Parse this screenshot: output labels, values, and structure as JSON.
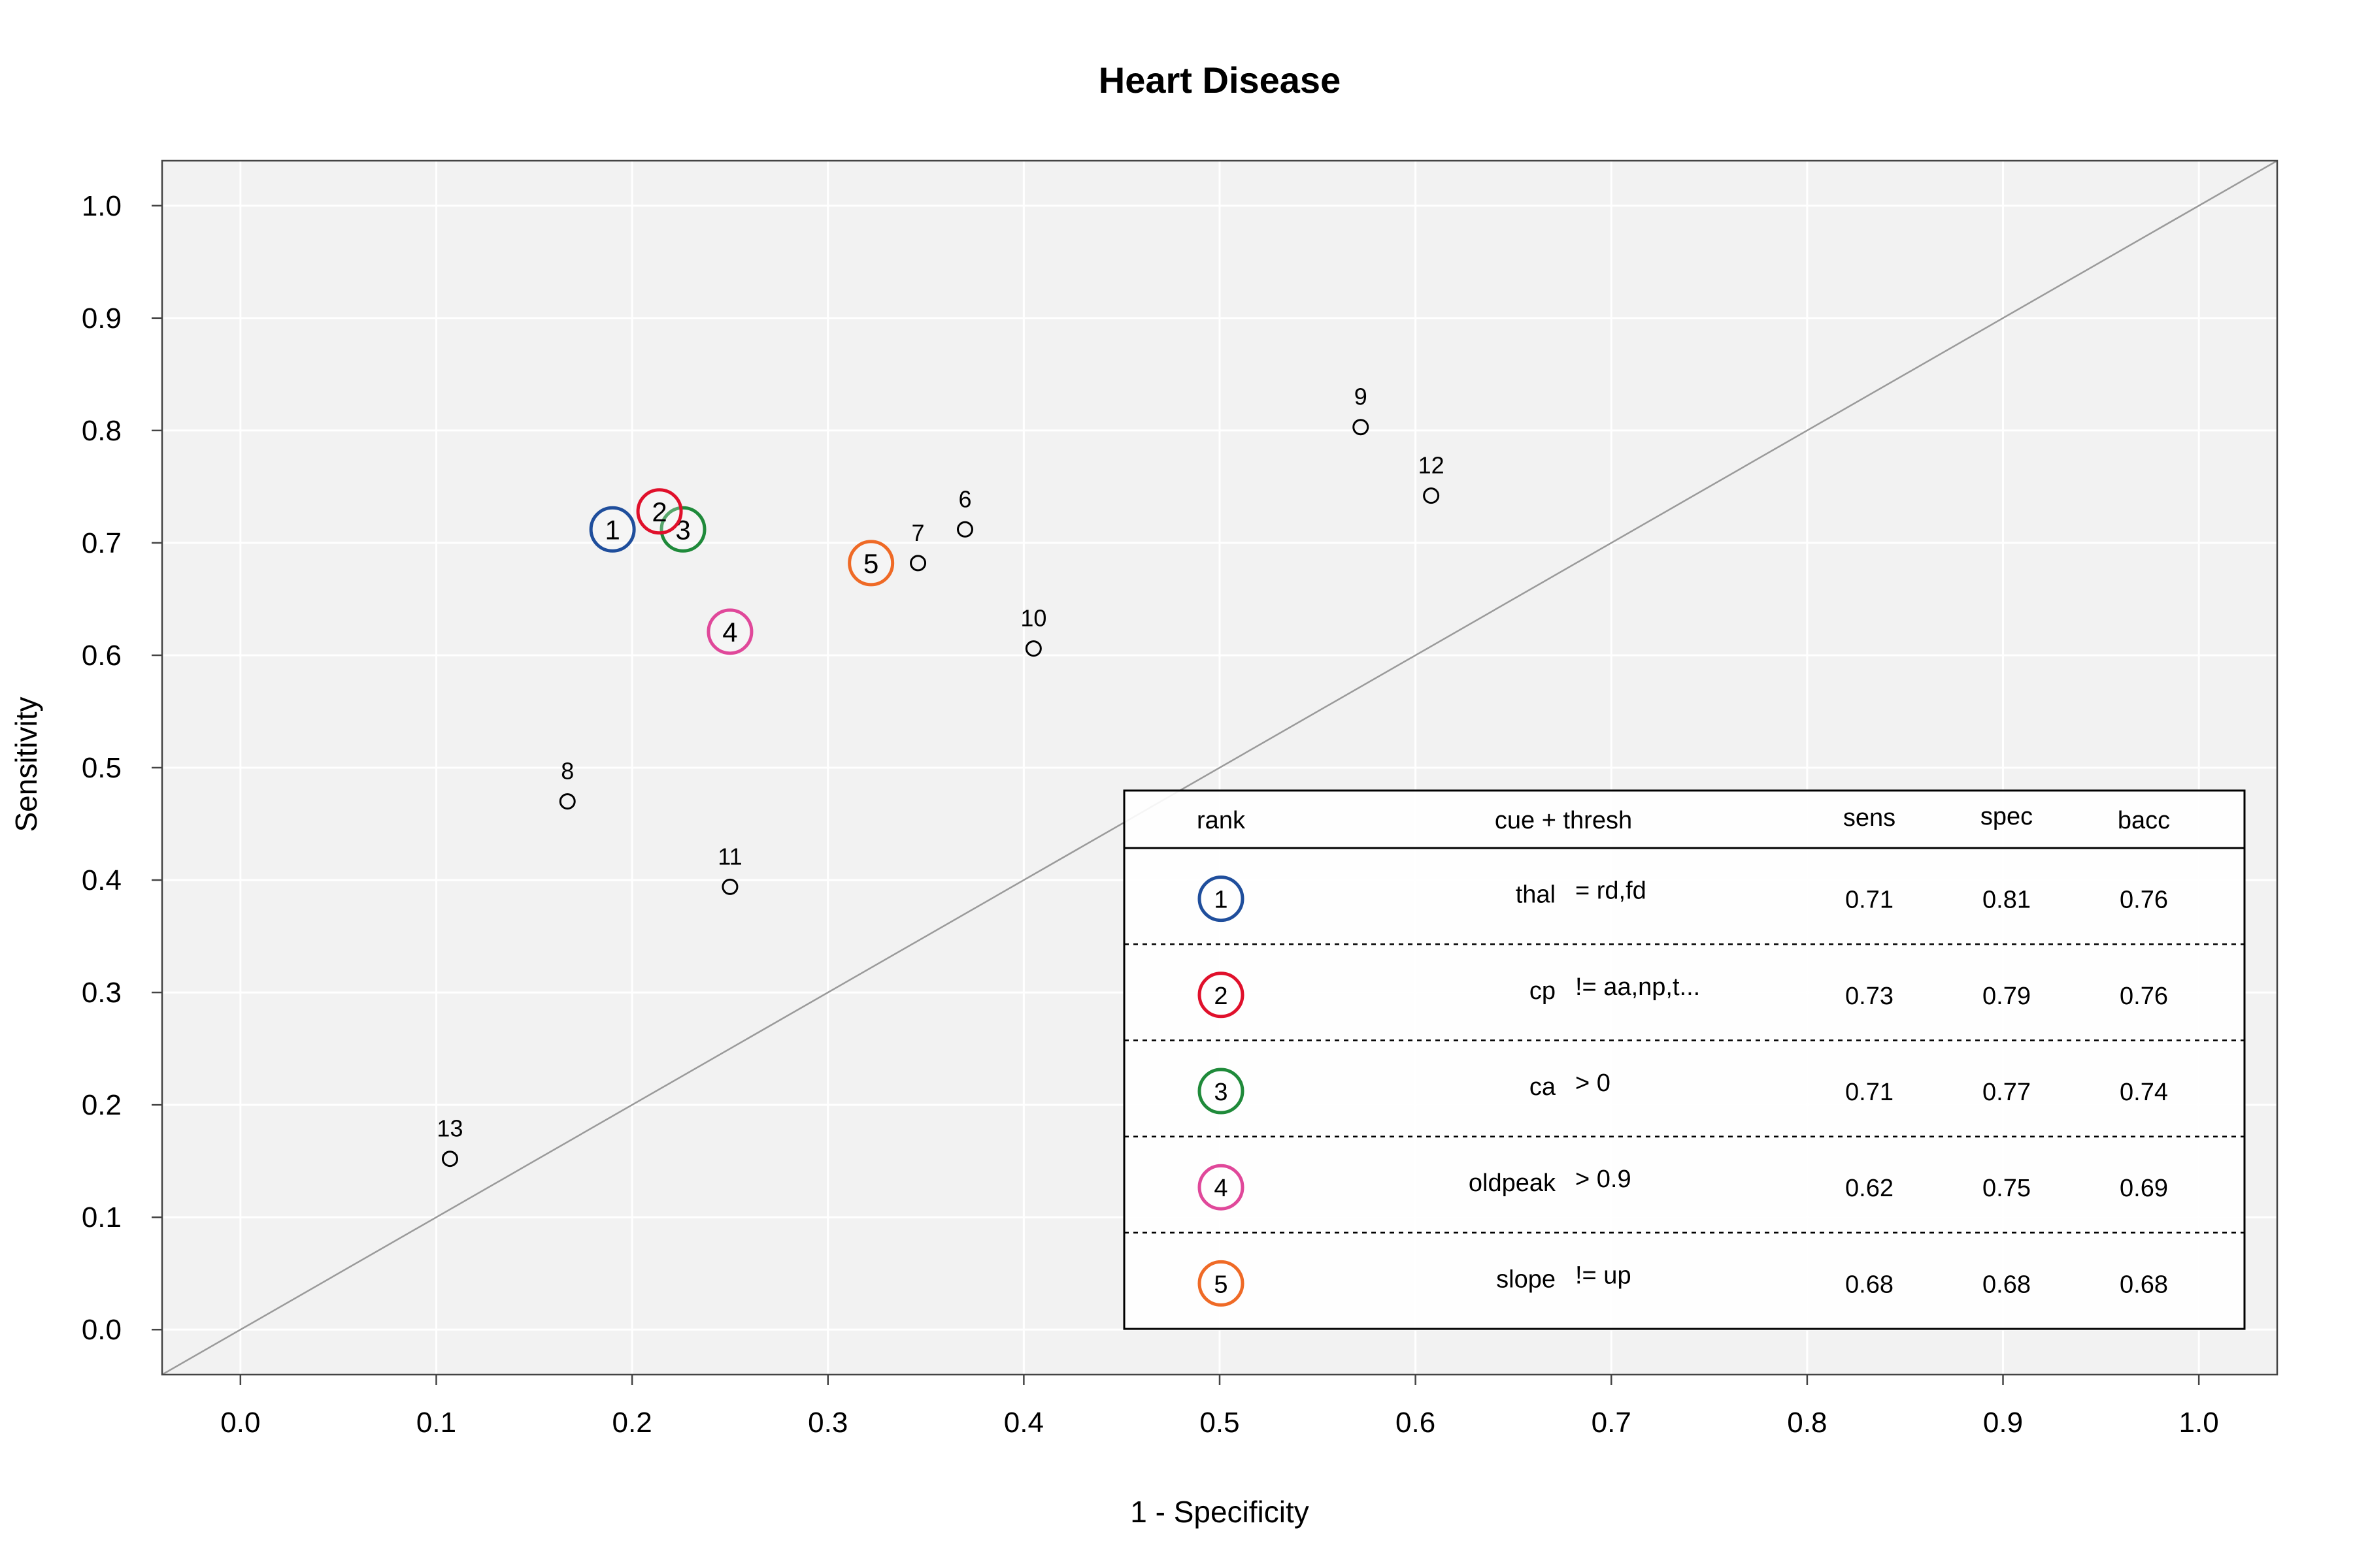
{
  "chart_data": {
    "type": "scatter",
    "title": "Heart Disease",
    "xlabel": "1 - Specificity",
    "ylabel": "Sensitivity",
    "xlim": [
      -0.04,
      1.04
    ],
    "ylim": [
      -0.04,
      1.04
    ],
    "xticks": [
      0.0,
      0.1,
      0.2,
      0.3,
      0.4,
      0.5,
      0.6,
      0.7,
      0.8,
      0.9,
      1.0
    ],
    "yticks": [
      0.0,
      0.1,
      0.2,
      0.3,
      0.4,
      0.5,
      0.6,
      0.7,
      0.8,
      0.9,
      1.0
    ],
    "xtick_labels": [
      "0.0",
      "0.1",
      "0.2",
      "0.3",
      "0.4",
      "0.5",
      "0.6",
      "0.7",
      "0.8",
      "0.9",
      "1.0"
    ],
    "ytick_labels": [
      "0.0",
      "0.1",
      "0.2",
      "0.3",
      "0.4",
      "0.5",
      "0.6",
      "0.7",
      "0.8",
      "0.9",
      "1.0"
    ],
    "grid": true,
    "reference_line": "diagonal",
    "colors": {
      "background": "#f2f2f2",
      "grid": "#ffffff",
      "diagonal": "#9a9a9a",
      "rank1": "#1f4e9c",
      "rank2": "#e0102b",
      "rank3": "#1f8a3a",
      "rank4": "#e0489a",
      "rank5": "#ef6a26"
    },
    "other_points": [
      {
        "label": "6",
        "x": 0.37,
        "y": 0.712
      },
      {
        "label": "7",
        "x": 0.346,
        "y": 0.682
      },
      {
        "label": "8",
        "x": 0.167,
        "y": 0.47
      },
      {
        "label": "9",
        "x": 0.572,
        "y": 0.803
      },
      {
        "label": "10",
        "x": 0.405,
        "y": 0.606
      },
      {
        "label": "11",
        "x": 0.25,
        "y": 0.394
      },
      {
        "label": "12",
        "x": 0.608,
        "y": 0.742
      },
      {
        "label": "13",
        "x": 0.107,
        "y": 0.152
      }
    ],
    "top_points": [
      {
        "rank": "1",
        "x": 0.19,
        "y": 0.712,
        "color": "#1f4e9c"
      },
      {
        "rank": "3",
        "x": 0.226,
        "y": 0.712,
        "color": "#1f8a3a"
      },
      {
        "rank": "2",
        "x": 0.214,
        "y": 0.728,
        "color": "#e0102b"
      },
      {
        "rank": "4",
        "x": 0.25,
        "y": 0.621,
        "color": "#e0489a"
      },
      {
        "rank": "5",
        "x": 0.322,
        "y": 0.682,
        "color": "#ef6a26"
      }
    ],
    "table": {
      "headers": {
        "rank": "rank",
        "cue": "cue + thresh",
        "sens": "sens",
        "spec": "spec",
        "bacc": "bacc"
      },
      "rows": [
        {
          "rank": "1",
          "color": "#1f4e9c",
          "cue": "thal",
          "thresh": "= rd,fd",
          "sens": "0.71",
          "spec": "0.81",
          "bacc": "0.76"
        },
        {
          "rank": "2",
          "color": "#e0102b",
          "cue": "cp",
          "thresh": "!= aa,np,t...",
          "sens": "0.73",
          "spec": "0.79",
          "bacc": "0.76"
        },
        {
          "rank": "3",
          "color": "#1f8a3a",
          "cue": "ca",
          "thresh": "> 0",
          "sens": "0.71",
          "spec": "0.77",
          "bacc": "0.74"
        },
        {
          "rank": "4",
          "color": "#e0489a",
          "cue": "oldpeak",
          "thresh": "> 0.9",
          "sens": "0.62",
          "spec": "0.75",
          "bacc": "0.69"
        },
        {
          "rank": "5",
          "color": "#ef6a26",
          "cue": "slope",
          "thresh": "!= up",
          "sens": "0.68",
          "spec": "0.68",
          "bacc": "0.68"
        }
      ]
    }
  }
}
